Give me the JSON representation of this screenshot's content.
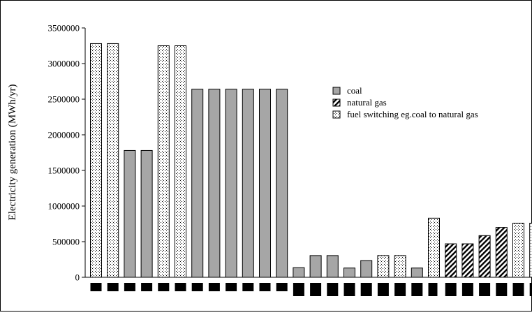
{
  "chart_data": {
    "type": "bar",
    "ylabel": "Electricity generation (MWh/yr)",
    "ylim": [
      0,
      3500000
    ],
    "yticks": [
      0,
      500000,
      1000000,
      1500000,
      2000000,
      2500000,
      3000000,
      3500000
    ],
    "ytick_labels": [
      "0",
      "500000",
      "1000000",
      "1500000",
      "2000000",
      "2500000",
      "3000000",
      "3500000"
    ],
    "grid": false,
    "legend_position": "top-right",
    "series": [
      {
        "name": "coal",
        "pattern": "solid-gray",
        "color": "#a6a6a6"
      },
      {
        "name": "natural gas",
        "pattern": "diagonal-hatch",
        "color": "#000000"
      },
      {
        "name": "fuel switching eg.coal to natural gas",
        "pattern": "dotted",
        "color": "#000000"
      }
    ],
    "bars": [
      {
        "value": 3280000,
        "series": 2
      },
      {
        "value": 3280000,
        "series": 2
      },
      {
        "value": 1780000,
        "series": 0
      },
      {
        "value": 1780000,
        "series": 0
      },
      {
        "value": 3250000,
        "series": 2
      },
      {
        "value": 3250000,
        "series": 2
      },
      {
        "value": 2640000,
        "series": 0
      },
      {
        "value": 2640000,
        "series": 0
      },
      {
        "value": 2640000,
        "series": 0
      },
      {
        "value": 2640000,
        "series": 0
      },
      {
        "value": 2640000,
        "series": 0
      },
      {
        "value": 2640000,
        "series": 0
      },
      {
        "value": 135000,
        "series": 0
      },
      {
        "value": 305000,
        "series": 0
      },
      {
        "value": 305000,
        "series": 0
      },
      {
        "value": 130000,
        "series": 0
      },
      {
        "value": 235000,
        "series": 0
      },
      {
        "value": 305000,
        "series": 2
      },
      {
        "value": 305000,
        "series": 2
      },
      {
        "value": 130000,
        "series": 0
      },
      {
        "value": 830000,
        "series": 2
      },
      {
        "value": 470000,
        "series": 1
      },
      {
        "value": 470000,
        "series": 1
      },
      {
        "value": 585000,
        "series": 1
      },
      {
        "value": 700000,
        "series": 1
      },
      {
        "value": 760000,
        "series": 2
      },
      {
        "value": 760000,
        "series": 2
      }
    ]
  }
}
